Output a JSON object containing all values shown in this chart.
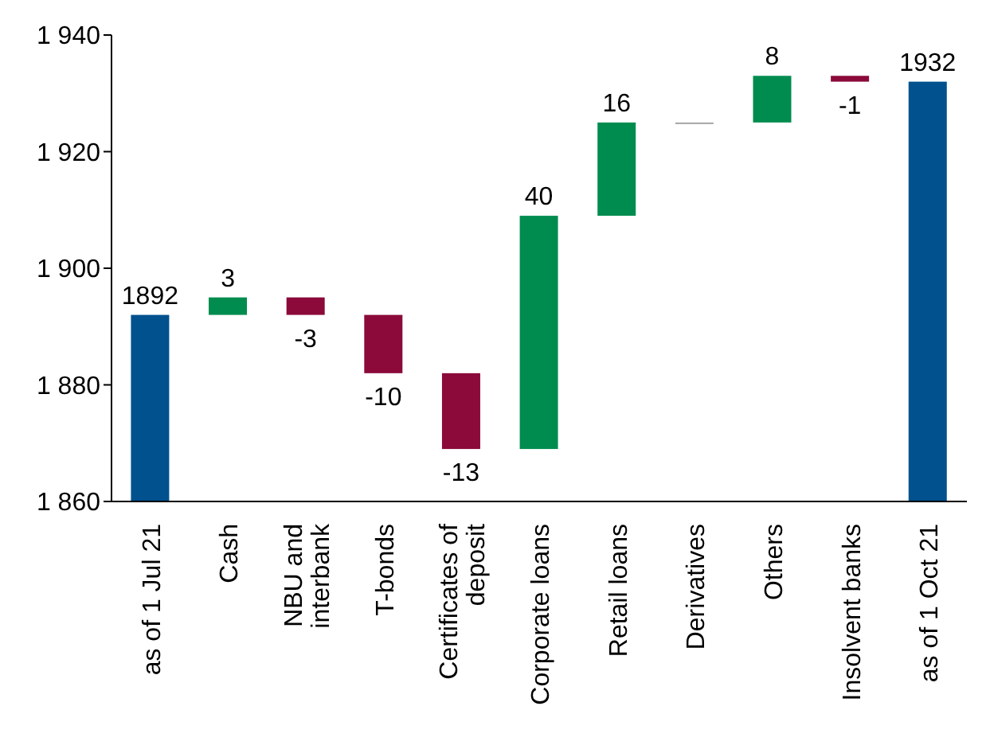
{
  "chart_data": {
    "type": "bar",
    "categories": [
      "as of 1 Jul 21",
      "Cash",
      "NBU and interbank",
      "T-bonds",
      "Certificates of deposit",
      "Corporate loans",
      "Retail loans",
      "Derivatives",
      "Others",
      "Insolvent banks",
      "as of 1 Oct 21"
    ],
    "values": [
      1892,
      3,
      -3,
      -10,
      -13,
      40,
      16,
      0,
      8,
      -1,
      1932
    ],
    "base": [
      null,
      1892,
      1895,
      1892,
      1882,
      1869,
      1909,
      1925,
      1925,
      1933,
      null
    ],
    "colors": [
      "#00518e",
      "#008c4f",
      "#8b0a3a",
      "#8b0a3a",
      "#8b0a3a",
      "#008c4f",
      "#008c4f",
      "#a6a6a6",
      "#008c4f",
      "#8b0a3a",
      "#00518e"
    ],
    "value_labels": [
      "1892",
      "3",
      "-3",
      "-10",
      "-13",
      "40",
      "16",
      null,
      "8",
      "-1",
      "1932"
    ],
    "ylim": [
      1860,
      1940
    ],
    "yticks": [
      {
        "value": 1860,
        "label": "1 860"
      },
      {
        "value": 1880,
        "label": "1 880"
      },
      {
        "value": 1900,
        "label": "1 900"
      },
      {
        "value": 1920,
        "label": "1 920"
      },
      {
        "value": 1940,
        "label": "1 940"
      }
    ]
  }
}
